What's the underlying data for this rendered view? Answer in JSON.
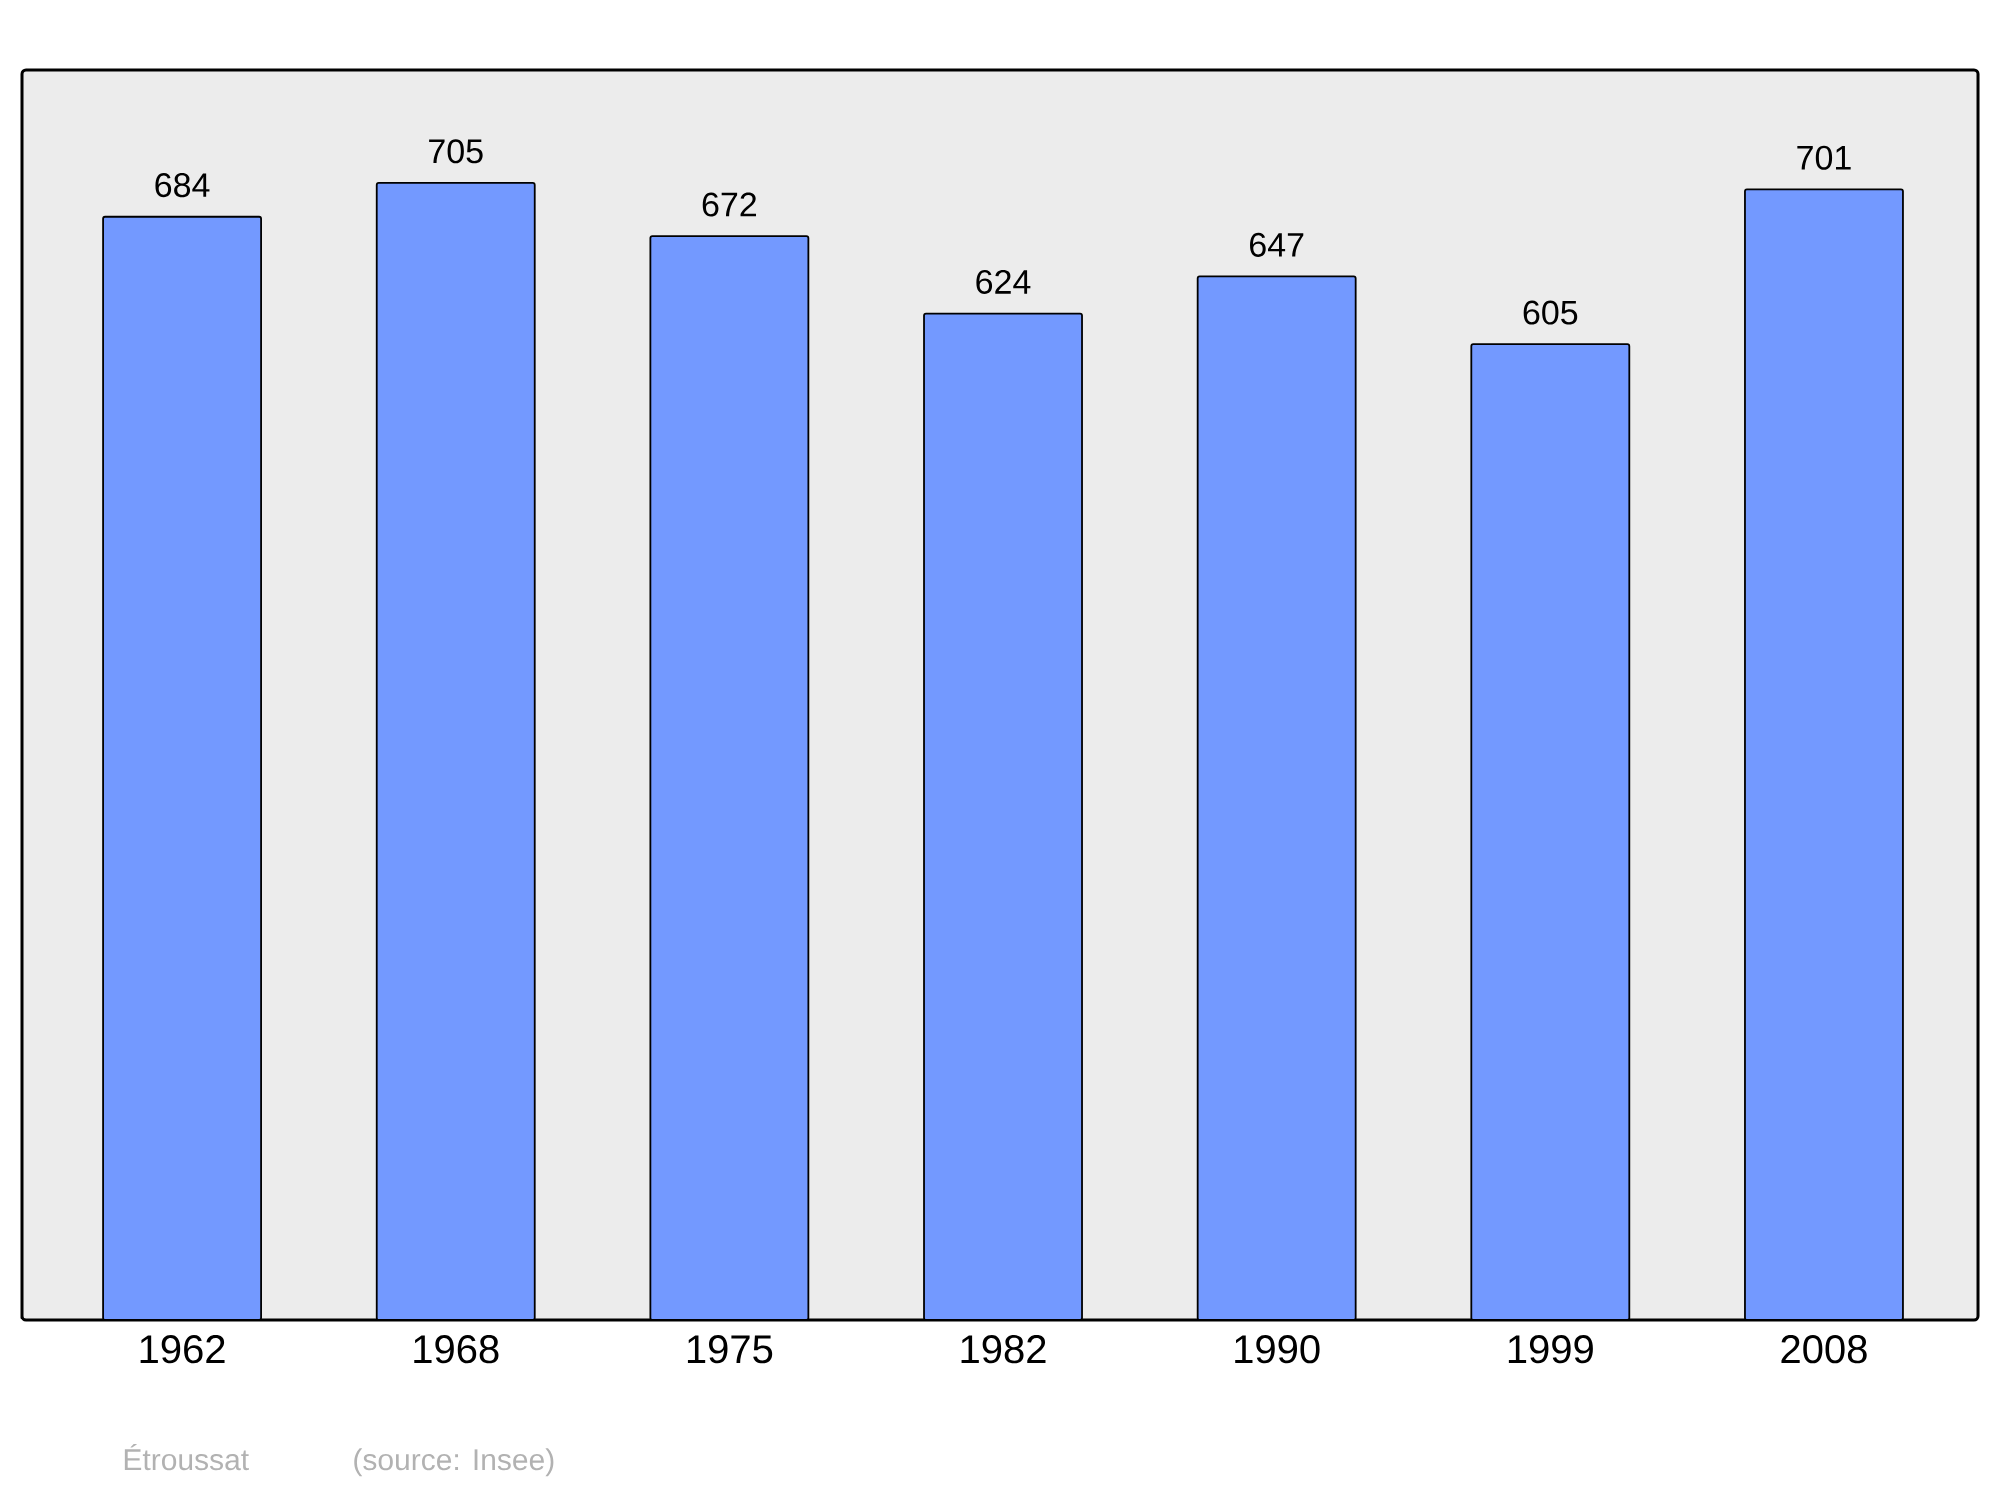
{
  "chart_data": {
    "type": "bar",
    "categories": [
      "1962",
      "1968",
      "1975",
      "1982",
      "1990",
      "1999",
      "2008"
    ],
    "values": [
      684,
      705,
      672,
      624,
      647,
      605,
      701
    ],
    "color": "#7399ff",
    "ylim": [
      0,
      775
    ],
    "tick_labels": "x",
    "data_labels": true,
    "annotations": [
      "Étroussat",
      "(source: Insee)"
    ]
  }
}
